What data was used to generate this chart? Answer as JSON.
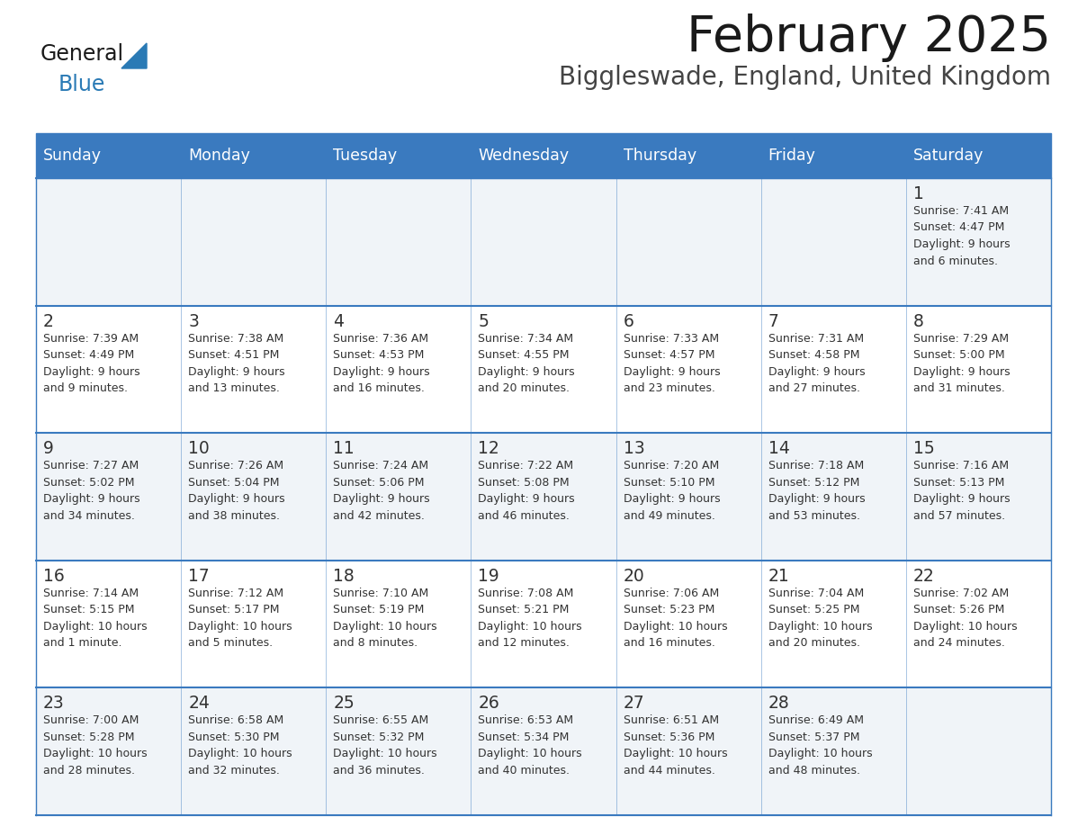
{
  "title": "February 2025",
  "subtitle": "Biggleswade, England, United Kingdom",
  "days_of_week": [
    "Sunday",
    "Monday",
    "Tuesday",
    "Wednesday",
    "Thursday",
    "Friday",
    "Saturday"
  ],
  "header_bg": "#3a7abf",
  "header_text_color": "#ffffff",
  "row_bg_odd": "#f0f4f8",
  "row_bg_even": "#ffffff",
  "cell_text_color": "#333333",
  "day_num_color": "#333333",
  "border_color": "#3a7abf",
  "title_color": "#1a1a1a",
  "subtitle_color": "#444444",
  "logo_general_color": "#1a1a1a",
  "logo_blue_color": "#2a7ab5",
  "logo_triangle_color": "#2a7ab5",
  "weeks": [
    [
      {
        "day": null,
        "text": ""
      },
      {
        "day": null,
        "text": ""
      },
      {
        "day": null,
        "text": ""
      },
      {
        "day": null,
        "text": ""
      },
      {
        "day": null,
        "text": ""
      },
      {
        "day": null,
        "text": ""
      },
      {
        "day": 1,
        "text": "Sunrise: 7:41 AM\nSunset: 4:47 PM\nDaylight: 9 hours\nand 6 minutes."
      }
    ],
    [
      {
        "day": 2,
        "text": "Sunrise: 7:39 AM\nSunset: 4:49 PM\nDaylight: 9 hours\nand 9 minutes."
      },
      {
        "day": 3,
        "text": "Sunrise: 7:38 AM\nSunset: 4:51 PM\nDaylight: 9 hours\nand 13 minutes."
      },
      {
        "day": 4,
        "text": "Sunrise: 7:36 AM\nSunset: 4:53 PM\nDaylight: 9 hours\nand 16 minutes."
      },
      {
        "day": 5,
        "text": "Sunrise: 7:34 AM\nSunset: 4:55 PM\nDaylight: 9 hours\nand 20 minutes."
      },
      {
        "day": 6,
        "text": "Sunrise: 7:33 AM\nSunset: 4:57 PM\nDaylight: 9 hours\nand 23 minutes."
      },
      {
        "day": 7,
        "text": "Sunrise: 7:31 AM\nSunset: 4:58 PM\nDaylight: 9 hours\nand 27 minutes."
      },
      {
        "day": 8,
        "text": "Sunrise: 7:29 AM\nSunset: 5:00 PM\nDaylight: 9 hours\nand 31 minutes."
      }
    ],
    [
      {
        "day": 9,
        "text": "Sunrise: 7:27 AM\nSunset: 5:02 PM\nDaylight: 9 hours\nand 34 minutes."
      },
      {
        "day": 10,
        "text": "Sunrise: 7:26 AM\nSunset: 5:04 PM\nDaylight: 9 hours\nand 38 minutes."
      },
      {
        "day": 11,
        "text": "Sunrise: 7:24 AM\nSunset: 5:06 PM\nDaylight: 9 hours\nand 42 minutes."
      },
      {
        "day": 12,
        "text": "Sunrise: 7:22 AM\nSunset: 5:08 PM\nDaylight: 9 hours\nand 46 minutes."
      },
      {
        "day": 13,
        "text": "Sunrise: 7:20 AM\nSunset: 5:10 PM\nDaylight: 9 hours\nand 49 minutes."
      },
      {
        "day": 14,
        "text": "Sunrise: 7:18 AM\nSunset: 5:12 PM\nDaylight: 9 hours\nand 53 minutes."
      },
      {
        "day": 15,
        "text": "Sunrise: 7:16 AM\nSunset: 5:13 PM\nDaylight: 9 hours\nand 57 minutes."
      }
    ],
    [
      {
        "day": 16,
        "text": "Sunrise: 7:14 AM\nSunset: 5:15 PM\nDaylight: 10 hours\nand 1 minute."
      },
      {
        "day": 17,
        "text": "Sunrise: 7:12 AM\nSunset: 5:17 PM\nDaylight: 10 hours\nand 5 minutes."
      },
      {
        "day": 18,
        "text": "Sunrise: 7:10 AM\nSunset: 5:19 PM\nDaylight: 10 hours\nand 8 minutes."
      },
      {
        "day": 19,
        "text": "Sunrise: 7:08 AM\nSunset: 5:21 PM\nDaylight: 10 hours\nand 12 minutes."
      },
      {
        "day": 20,
        "text": "Sunrise: 7:06 AM\nSunset: 5:23 PM\nDaylight: 10 hours\nand 16 minutes."
      },
      {
        "day": 21,
        "text": "Sunrise: 7:04 AM\nSunset: 5:25 PM\nDaylight: 10 hours\nand 20 minutes."
      },
      {
        "day": 22,
        "text": "Sunrise: 7:02 AM\nSunset: 5:26 PM\nDaylight: 10 hours\nand 24 minutes."
      }
    ],
    [
      {
        "day": 23,
        "text": "Sunrise: 7:00 AM\nSunset: 5:28 PM\nDaylight: 10 hours\nand 28 minutes."
      },
      {
        "day": 24,
        "text": "Sunrise: 6:58 AM\nSunset: 5:30 PM\nDaylight: 10 hours\nand 32 minutes."
      },
      {
        "day": 25,
        "text": "Sunrise: 6:55 AM\nSunset: 5:32 PM\nDaylight: 10 hours\nand 36 minutes."
      },
      {
        "day": 26,
        "text": "Sunrise: 6:53 AM\nSunset: 5:34 PM\nDaylight: 10 hours\nand 40 minutes."
      },
      {
        "day": 27,
        "text": "Sunrise: 6:51 AM\nSunset: 5:36 PM\nDaylight: 10 hours\nand 44 minutes."
      },
      {
        "day": 28,
        "text": "Sunrise: 6:49 AM\nSunset: 5:37 PM\nDaylight: 10 hours\nand 48 minutes."
      },
      {
        "day": null,
        "text": ""
      }
    ]
  ]
}
